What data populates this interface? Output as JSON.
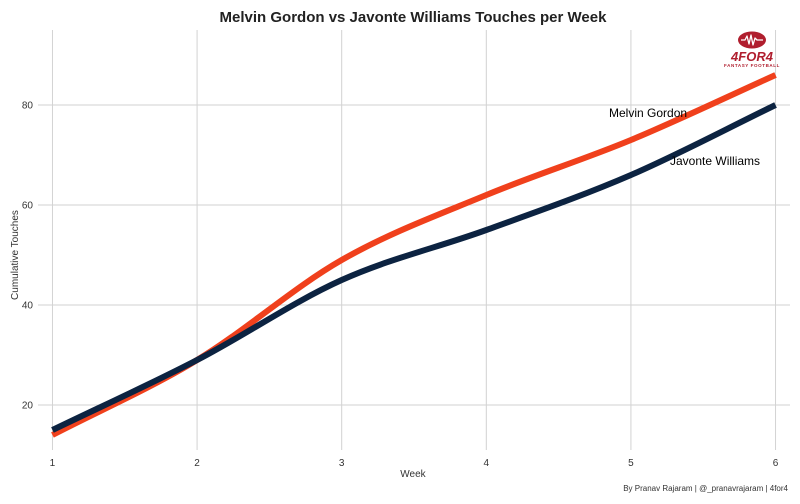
{
  "chart_data": {
    "type": "line",
    "title": "Melvin Gordon vs Javonte Williams Touches per Week",
    "xlabel": "Week",
    "ylabel": "Cumulative Touches",
    "x": [
      1,
      2,
      3,
      4,
      5,
      6
    ],
    "xlim": [
      0.9,
      6.1
    ],
    "ylim": [
      11,
      95
    ],
    "xticks": [
      1,
      2,
      3,
      4,
      5,
      6
    ],
    "yticks": [
      20,
      40,
      60,
      80
    ],
    "grid": true,
    "legend": "direct labels",
    "series": [
      {
        "name": "Melvin Gordon",
        "color": "#f0401c",
        "values": [
          14,
          29,
          49,
          62,
          73,
          86
        ]
      },
      {
        "name": "Javonte Williams",
        "color": "#0c2341",
        "values": [
          15,
          29,
          45,
          55,
          66,
          80
        ]
      }
    ],
    "caption": "By Pranav Rajaram | @_pranavrajaram | 4for4"
  },
  "logo": {
    "main": "4FOR4",
    "sub": "FANTASY FOOTBALL",
    "color": "#b01e2e"
  }
}
